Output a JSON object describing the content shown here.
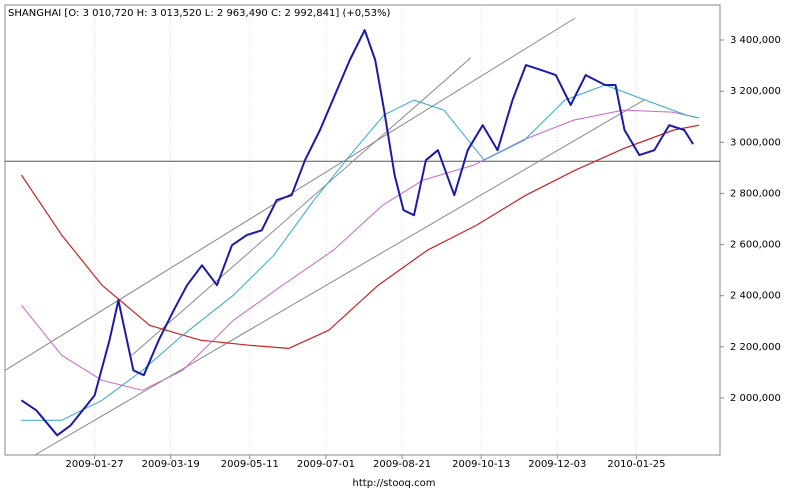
{
  "chart_data": {
    "type": "line",
    "title": "SHANGHAI [O: 3 010,720  H: 3 013,520  L: 2 963,490  C: 2 992,841] (+0,53%)",
    "footer": "http://stooq.com",
    "xlim": [
      "2008-11-28",
      "2010-03-22"
    ],
    "xticks": [
      "2009-01-27",
      "2009-03-19",
      "2009-05-11",
      "2009-07-01",
      "2009-08-21",
      "2009-10-13",
      "2009-12-03",
      "2010-01-25"
    ],
    "ylim": [
      1777000,
      3537000
    ],
    "yticks": [
      {
        "value": 2000000,
        "label": "2 000,000"
      },
      {
        "value": 2200000,
        "label": "2 200,000"
      },
      {
        "value": 2400000,
        "label": "2 400,000"
      },
      {
        "value": 2600000,
        "label": "2 600,000"
      },
      {
        "value": 2800000,
        "label": "2 800,000"
      },
      {
        "value": 3000000,
        "label": "3 000,000"
      },
      {
        "value": 3200000,
        "label": "3 200,000"
      },
      {
        "value": 3400000,
        "label": "3 400,000"
      }
    ],
    "grid": true,
    "hline": {
      "value": 2926000,
      "color": "#555555"
    },
    "series": [
      {
        "color": "#888888",
        "width": 1,
        "x": [
          "2008-11-28",
          "2009-12-15"
        ],
        "values": [
          2108000,
          3486000
        ]
      },
      {
        "color": "#888888",
        "width": 1,
        "x": [
          "2009-02-21",
          "2009-10-06"
        ],
        "values": [
          2167000,
          3330000
        ]
      },
      {
        "color": "#888888",
        "width": 1,
        "x": [
          "2008-12-18",
          "2010-01-30"
        ],
        "values": [
          1777000,
          3165000
        ]
      },
      {
        "color": "#cc2222",
        "width": 1.2,
        "x": [
          "2008-12-09",
          "2009-01-05",
          "2009-02-01",
          "2009-03-05",
          "2009-04-08",
          "2009-05-11",
          "2009-06-06",
          "2009-07-03",
          "2009-08-05",
          "2009-09-07",
          "2009-10-10",
          "2009-11-12",
          "2009-12-15",
          "2010-01-17",
          "2010-02-19",
          "2010-03-08"
        ],
        "values": [
          2872000,
          2637000,
          2441000,
          2284000,
          2226000,
          2206000,
          2194000,
          2265000,
          2441000,
          2578000,
          2676000,
          2793000,
          2891000,
          2977000,
          3048000,
          3067000
        ]
      },
      {
        "color": "#cc66cc",
        "width": 1,
        "x": [
          "2008-12-09",
          "2009-01-05",
          "2009-02-01",
          "2009-02-28",
          "2009-03-27",
          "2009-04-30",
          "2009-06-02",
          "2009-07-06",
          "2009-08-08",
          "2009-09-04",
          "2009-10-08",
          "2009-11-10",
          "2009-12-14",
          "2010-01-16",
          "2010-02-18",
          "2010-03-08"
        ],
        "values": [
          2363000,
          2167000,
          2069000,
          2030000,
          2108000,
          2304000,
          2441000,
          2578000,
          2754000,
          2852000,
          2911000,
          3009000,
          3087000,
          3126000,
          3118000,
          3095000
        ]
      },
      {
        "color": "#33aacc",
        "width": 1,
        "x": [
          "2008-12-09",
          "2009-01-05",
          "2009-02-01",
          "2009-02-28",
          "2009-03-27",
          "2009-04-30",
          "2009-05-27",
          "2009-06-23",
          "2009-07-20",
          "2009-08-09",
          "2009-08-29",
          "2009-09-18",
          "2009-10-15",
          "2009-11-11",
          "2009-12-08",
          "2010-01-04",
          "2010-01-31",
          "2010-02-27",
          "2010-03-08"
        ],
        "values": [
          1913000,
          1913000,
          1991000,
          2108000,
          2245000,
          2402000,
          2558000,
          2774000,
          2969000,
          3107000,
          3165000,
          3126000,
          2930000,
          3009000,
          3165000,
          3224000,
          3165000,
          3107000,
          3095000
        ]
      },
      {
        "color": "#1a1aaa",
        "width": 2,
        "x": [
          "2008-12-09",
          "2008-12-19",
          "2009-01-02",
          "2009-01-11",
          "2009-01-27",
          "2009-02-06",
          "2009-02-12",
          "2009-02-22",
          "2009-03-01",
          "2009-03-11",
          "2009-03-21",
          "2009-03-30",
          "2009-04-09",
          "2009-04-19",
          "2009-04-29",
          "2009-05-09",
          "2009-05-19",
          "2009-05-29",
          "2009-06-08",
          "2009-06-17",
          "2009-06-27",
          "2009-07-07",
          "2009-07-17",
          "2009-07-27",
          "2009-08-03",
          "2009-08-09",
          "2009-08-16",
          "2009-08-22",
          "2009-08-29",
          "2009-09-06",
          "2009-09-14",
          "2009-09-25",
          "2009-10-04",
          "2009-10-14",
          "2009-10-24",
          "2009-11-03",
          "2009-11-12",
          "2009-11-22",
          "2009-12-02",
          "2009-12-12",
          "2009-12-22",
          "2010-01-04",
          "2010-01-11",
          "2010-01-17",
          "2010-01-27",
          "2010-02-06",
          "2010-02-16",
          "2010-02-26",
          "2010-03-04"
        ],
        "values": [
          1991000,
          1952000,
          1854000,
          1893000,
          2010000,
          2226000,
          2382000,
          2108000,
          2089000,
          2226000,
          2343000,
          2441000,
          2519000,
          2441000,
          2597000,
          2637000,
          2656000,
          2774000,
          2793000,
          2930000,
          3048000,
          3185000,
          3322000,
          3439000,
          3322000,
          3126000,
          2872000,
          2735000,
          2715000,
          2930000,
          2969000,
          2793000,
          2969000,
          3067000,
          2969000,
          3165000,
          3302000,
          3283000,
          3263000,
          3146000,
          3263000,
          3224000,
          3224000,
          3048000,
          2950000,
          2969000,
          3067000,
          3048000,
          2992841
        ]
      }
    ]
  }
}
